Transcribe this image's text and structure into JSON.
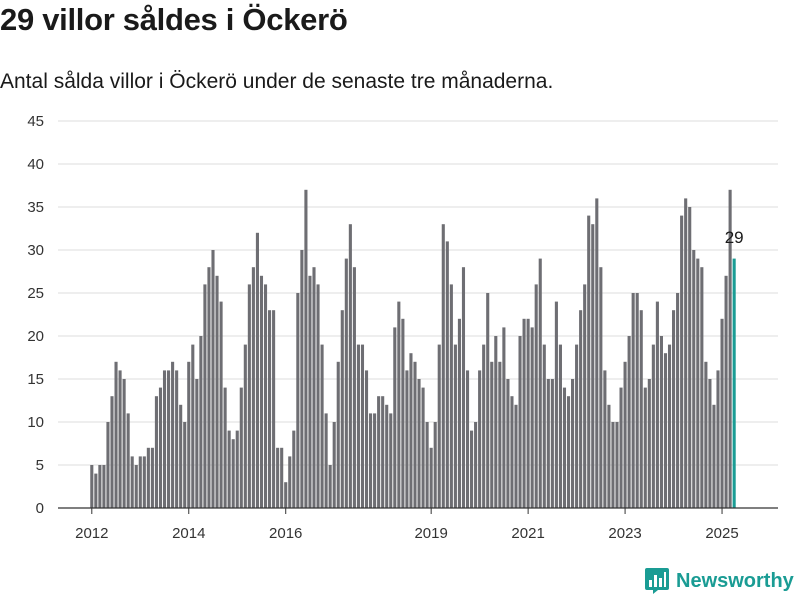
{
  "header": {
    "title": "29 villor såldes i Öckerö",
    "subtitle": "Antal sålda villor i Öckerö under de senaste tre månaderna."
  },
  "brand": {
    "name": "Newsworthy",
    "icon": "bar-chart-logo-icon",
    "color": "#1a9c94"
  },
  "colors": {
    "bar": "#6e6e73",
    "highlight": "#1a9c94",
    "grid": "#dcdcdc",
    "axis": "#333333"
  },
  "chart_data": {
    "type": "bar",
    "title": "29 villor såldes i Öckerö",
    "subtitle": "Antal sålda villor i Öckerö under de senaste tre månaderna.",
    "xlabel": "",
    "ylabel": "",
    "ylim": [
      0,
      45
    ],
    "yticks": [
      0,
      5,
      10,
      15,
      20,
      25,
      30,
      35,
      40,
      45
    ],
    "xticks": [
      "2012",
      "2014",
      "2016",
      "2019",
      "2021",
      "2023",
      "2025"
    ],
    "xtick_bar_index": [
      0,
      24,
      48,
      84,
      108,
      132,
      156
    ],
    "grid": true,
    "legend": "none",
    "highlight_label": "29",
    "values": [
      5,
      4,
      5,
      5,
      10,
      13,
      17,
      16,
      15,
      11,
      6,
      5,
      6,
      6,
      7,
      7,
      13,
      14,
      16,
      16,
      17,
      16,
      12,
      10,
      17,
      19,
      15,
      20,
      26,
      28,
      30,
      27,
      24,
      14,
      9,
      8,
      9,
      14,
      19,
      26,
      28,
      32,
      27,
      26,
      23,
      23,
      7,
      7,
      3,
      6,
      9,
      25,
      30,
      37,
      27,
      28,
      26,
      19,
      11,
      5,
      10,
      17,
      23,
      29,
      33,
      28,
      19,
      19,
      16,
      11,
      11,
      13,
      13,
      12,
      11,
      21,
      24,
      22,
      16,
      18,
      17,
      15,
      14,
      10,
      7,
      10,
      19,
      33,
      31,
      26,
      19,
      22,
      28,
      16,
      9,
      10,
      16,
      19,
      25,
      17,
      20,
      17,
      21,
      15,
      13,
      12,
      20,
      22,
      22,
      21,
      26,
      29,
      19,
      15,
      15,
      24,
      19,
      14,
      13,
      15,
      19,
      23,
      26,
      34,
      33,
      36,
      28,
      16,
      12,
      10,
      10,
      14,
      17,
      20,
      25,
      25,
      23,
      14,
      15,
      19,
      24,
      20,
      18,
      19,
      23,
      25,
      34,
      36,
      35,
      30,
      29,
      28,
      17,
      15,
      12,
      16,
      22,
      27,
      37,
      29
    ]
  }
}
